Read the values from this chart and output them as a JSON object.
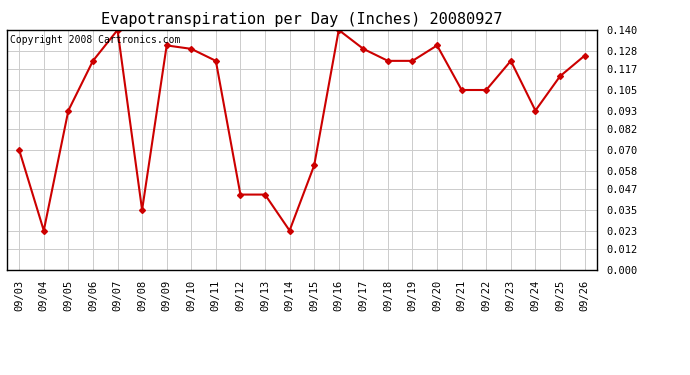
{
  "title": "Evapotranspiration per Day (Inches) 20080927",
  "copyright_text": "Copyright 2008 Cartronics.com",
  "dates": [
    "09/03",
    "09/04",
    "09/05",
    "09/06",
    "09/07",
    "09/08",
    "09/09",
    "09/10",
    "09/11",
    "09/12",
    "09/13",
    "09/14",
    "09/15",
    "09/16",
    "09/17",
    "09/18",
    "09/19",
    "09/20",
    "09/21",
    "09/22",
    "09/23",
    "09/24",
    "09/25",
    "09/26"
  ],
  "values": [
    0.07,
    0.023,
    0.093,
    0.122,
    0.14,
    0.035,
    0.131,
    0.129,
    0.122,
    0.044,
    0.044,
    0.023,
    0.061,
    0.14,
    0.129,
    0.122,
    0.122,
    0.131,
    0.105,
    0.105,
    0.122,
    0.093,
    0.113,
    0.125
  ],
  "line_color": "#cc0000",
  "marker": "D",
  "marker_size": 3,
  "line_width": 1.5,
  "bg_color": "#ffffff",
  "grid_color": "#cccccc",
  "ylim": [
    0.0,
    0.14
  ],
  "yticks": [
    0.0,
    0.012,
    0.023,
    0.035,
    0.047,
    0.058,
    0.07,
    0.082,
    0.093,
    0.105,
    0.117,
    0.128,
    0.14
  ],
  "title_fontsize": 11,
  "tick_fontsize": 7.5,
  "copyright_fontsize": 7
}
